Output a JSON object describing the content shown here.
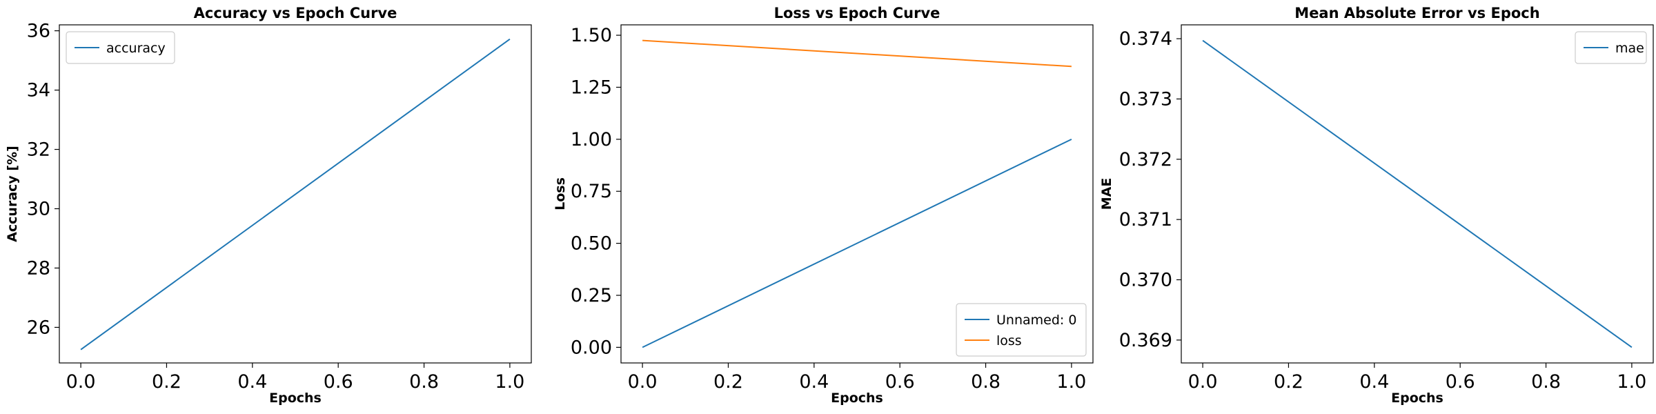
{
  "chart_data": [
    {
      "type": "line",
      "title": "Accuracy vs Epoch Curve",
      "xlabel": "Epochs",
      "ylabel": "Accuracy [%]",
      "x": [
        0.0,
        1.0
      ],
      "series": [
        {
          "name": "accuracy",
          "color": "#1f77b4",
          "values": [
            25.25,
            35.72
          ]
        }
      ],
      "xlim": [
        -0.05,
        1.05
      ],
      "ylim": [
        24.8,
        36.2
      ],
      "xticks": [
        0.0,
        0.2,
        0.4,
        0.6,
        0.8,
        1.0
      ],
      "xtick_labels": [
        "0.0",
        "0.2",
        "0.4",
        "0.6",
        "0.8",
        "1.0"
      ],
      "yticks": [
        26,
        28,
        30,
        32,
        34,
        36
      ],
      "ytick_labels": [
        "26",
        "28",
        "30",
        "32",
        "34",
        "36"
      ],
      "legend_position": "top-left",
      "grid": false
    },
    {
      "type": "line",
      "title": "Loss vs Epoch Curve",
      "xlabel": "Epochs",
      "ylabel": "Loss",
      "x": [
        0.0,
        1.0
      ],
      "series": [
        {
          "name": "Unnamed: 0",
          "color": "#1f77b4",
          "values": [
            0.0,
            1.0
          ]
        },
        {
          "name": "loss",
          "color": "#ff7f0e",
          "values": [
            1.475,
            1.35
          ]
        }
      ],
      "xlim": [
        -0.05,
        1.05
      ],
      "ylim": [
        -0.075,
        1.55
      ],
      "xticks": [
        0.0,
        0.2,
        0.4,
        0.6,
        0.8,
        1.0
      ],
      "xtick_labels": [
        "0.0",
        "0.2",
        "0.4",
        "0.6",
        "0.8",
        "1.0"
      ],
      "yticks": [
        0.0,
        0.25,
        0.5,
        0.75,
        1.0,
        1.25,
        1.5
      ],
      "ytick_labels": [
        "0.00",
        "0.25",
        "0.50",
        "0.75",
        "1.00",
        "1.25",
        "1.50"
      ],
      "legend_position": "bottom-right",
      "grid": false
    },
    {
      "type": "line",
      "title": "Mean Absolute Error vs Epoch",
      "xlabel": "Epochs",
      "ylabel": "MAE",
      "x": [
        0.0,
        1.0
      ],
      "series": [
        {
          "name": "mae",
          "color": "#1f77b4",
          "values": [
            0.37397,
            0.36888
          ]
        }
      ],
      "xlim": [
        -0.05,
        1.05
      ],
      "ylim": [
        0.36862,
        0.37423
      ],
      "xticks": [
        0.0,
        0.2,
        0.4,
        0.6,
        0.8,
        1.0
      ],
      "xtick_labels": [
        "0.0",
        "0.2",
        "0.4",
        "0.6",
        "0.8",
        "1.0"
      ],
      "yticks": [
        0.369,
        0.37,
        0.371,
        0.372,
        0.373,
        0.374
      ],
      "ytick_labels": [
        "0.369",
        "0.370",
        "0.371",
        "0.372",
        "0.373",
        "0.374"
      ],
      "legend_position": "top-right",
      "grid": false
    }
  ]
}
